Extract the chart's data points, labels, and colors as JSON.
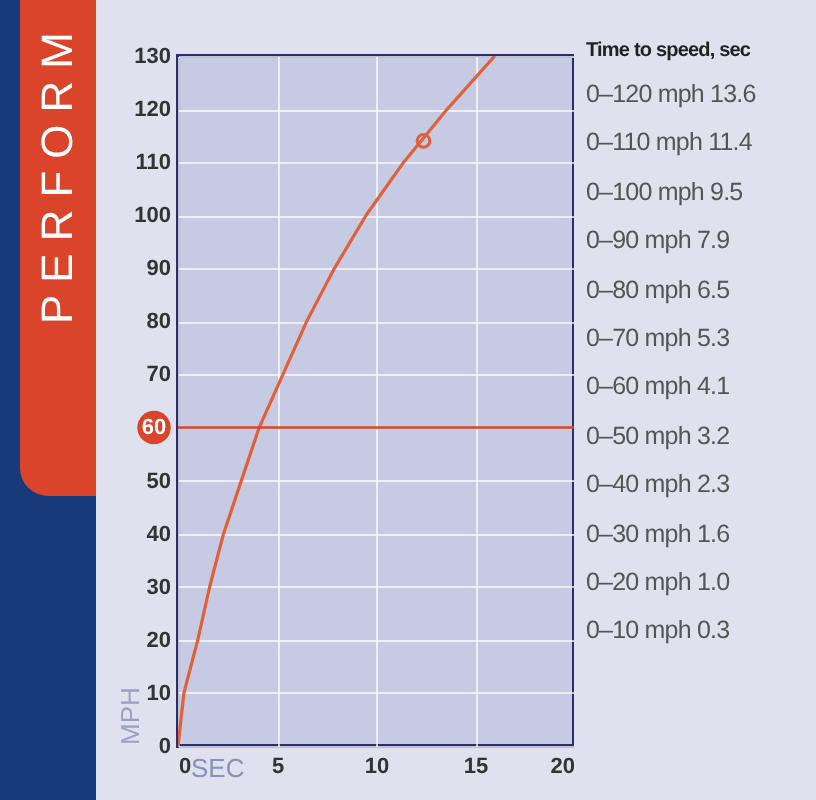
{
  "chart_data": {
    "type": "line",
    "xlabel": "SEC",
    "ylabel": "MPH",
    "xlim": [
      0,
      20
    ],
    "xticks": [
      0,
      5,
      10,
      15,
      20
    ],
    "ylim": [
      0,
      130
    ],
    "yticks": [
      0,
      10,
      20,
      30,
      40,
      50,
      70,
      80,
      90,
      100,
      110,
      120,
      130
    ],
    "grid": true,
    "series": [
      {
        "color": "#e0603a",
        "x": [
          0,
          0.3,
          1.0,
          1.6,
          2.3,
          3.2,
          4.1,
          5.3,
          6.5,
          7.9,
          9.5,
          11.4,
          13.6,
          16.0
        ],
        "values": [
          0,
          10,
          20,
          30,
          40,
          50,
          60,
          70,
          80,
          90,
          100,
          110,
          120,
          130
        ]
      },
      {
        "type": "scatter",
        "color": "#e0603a",
        "x": [
          12.4
        ],
        "values": [
          114
        ]
      }
    ],
    "ref_lines": [
      {
        "axis": "y",
        "value": 60,
        "label": "60",
        "color": "#d9442b"
      }
    ],
    "annotations": [
      "PERFORM",
      "Time to speed, sec",
      "0–120 mph 13.6",
      "0–110 mph 11.4",
      "0–100 mph 9.5",
      "0–90 mph 7.9",
      "0–80 mph 6.5",
      "0–70 mph 5.3",
      "0–60 mph 4.1",
      "0–50 mph 3.2",
      "0–40 mph 2.3",
      "0–30 mph 1.6",
      "0–20 mph 1.0",
      "0–10 mph 0.3"
    ]
  }
}
